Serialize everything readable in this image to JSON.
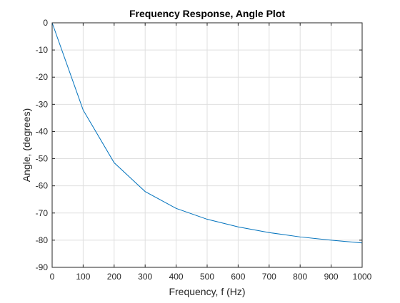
{
  "chart_data": {
    "type": "line",
    "title": "Frequency Response, Angle Plot",
    "xlabel": "Frequency, f (Hz)",
    "ylabel": "Angle, (degrees)",
    "xlim": [
      0,
      1000
    ],
    "ylim": [
      -90,
      0
    ],
    "xticks": [
      0,
      100,
      200,
      300,
      400,
      500,
      600,
      700,
      800,
      900,
      1000
    ],
    "yticks": [
      0,
      -10,
      -20,
      -30,
      -40,
      -50,
      -60,
      -70,
      -80,
      -90
    ],
    "grid": true,
    "series": [
      {
        "color": "#0072bd",
        "x": [
          0,
          100,
          200,
          300,
          400,
          500,
          600,
          700,
          800,
          900,
          1000
        ],
        "y": [
          0,
          -32.1,
          -51.5,
          -62.1,
          -68.3,
          -72.3,
          -75.1,
          -77.2,
          -78.8,
          -80.0,
          -81.0
        ]
      }
    ]
  }
}
